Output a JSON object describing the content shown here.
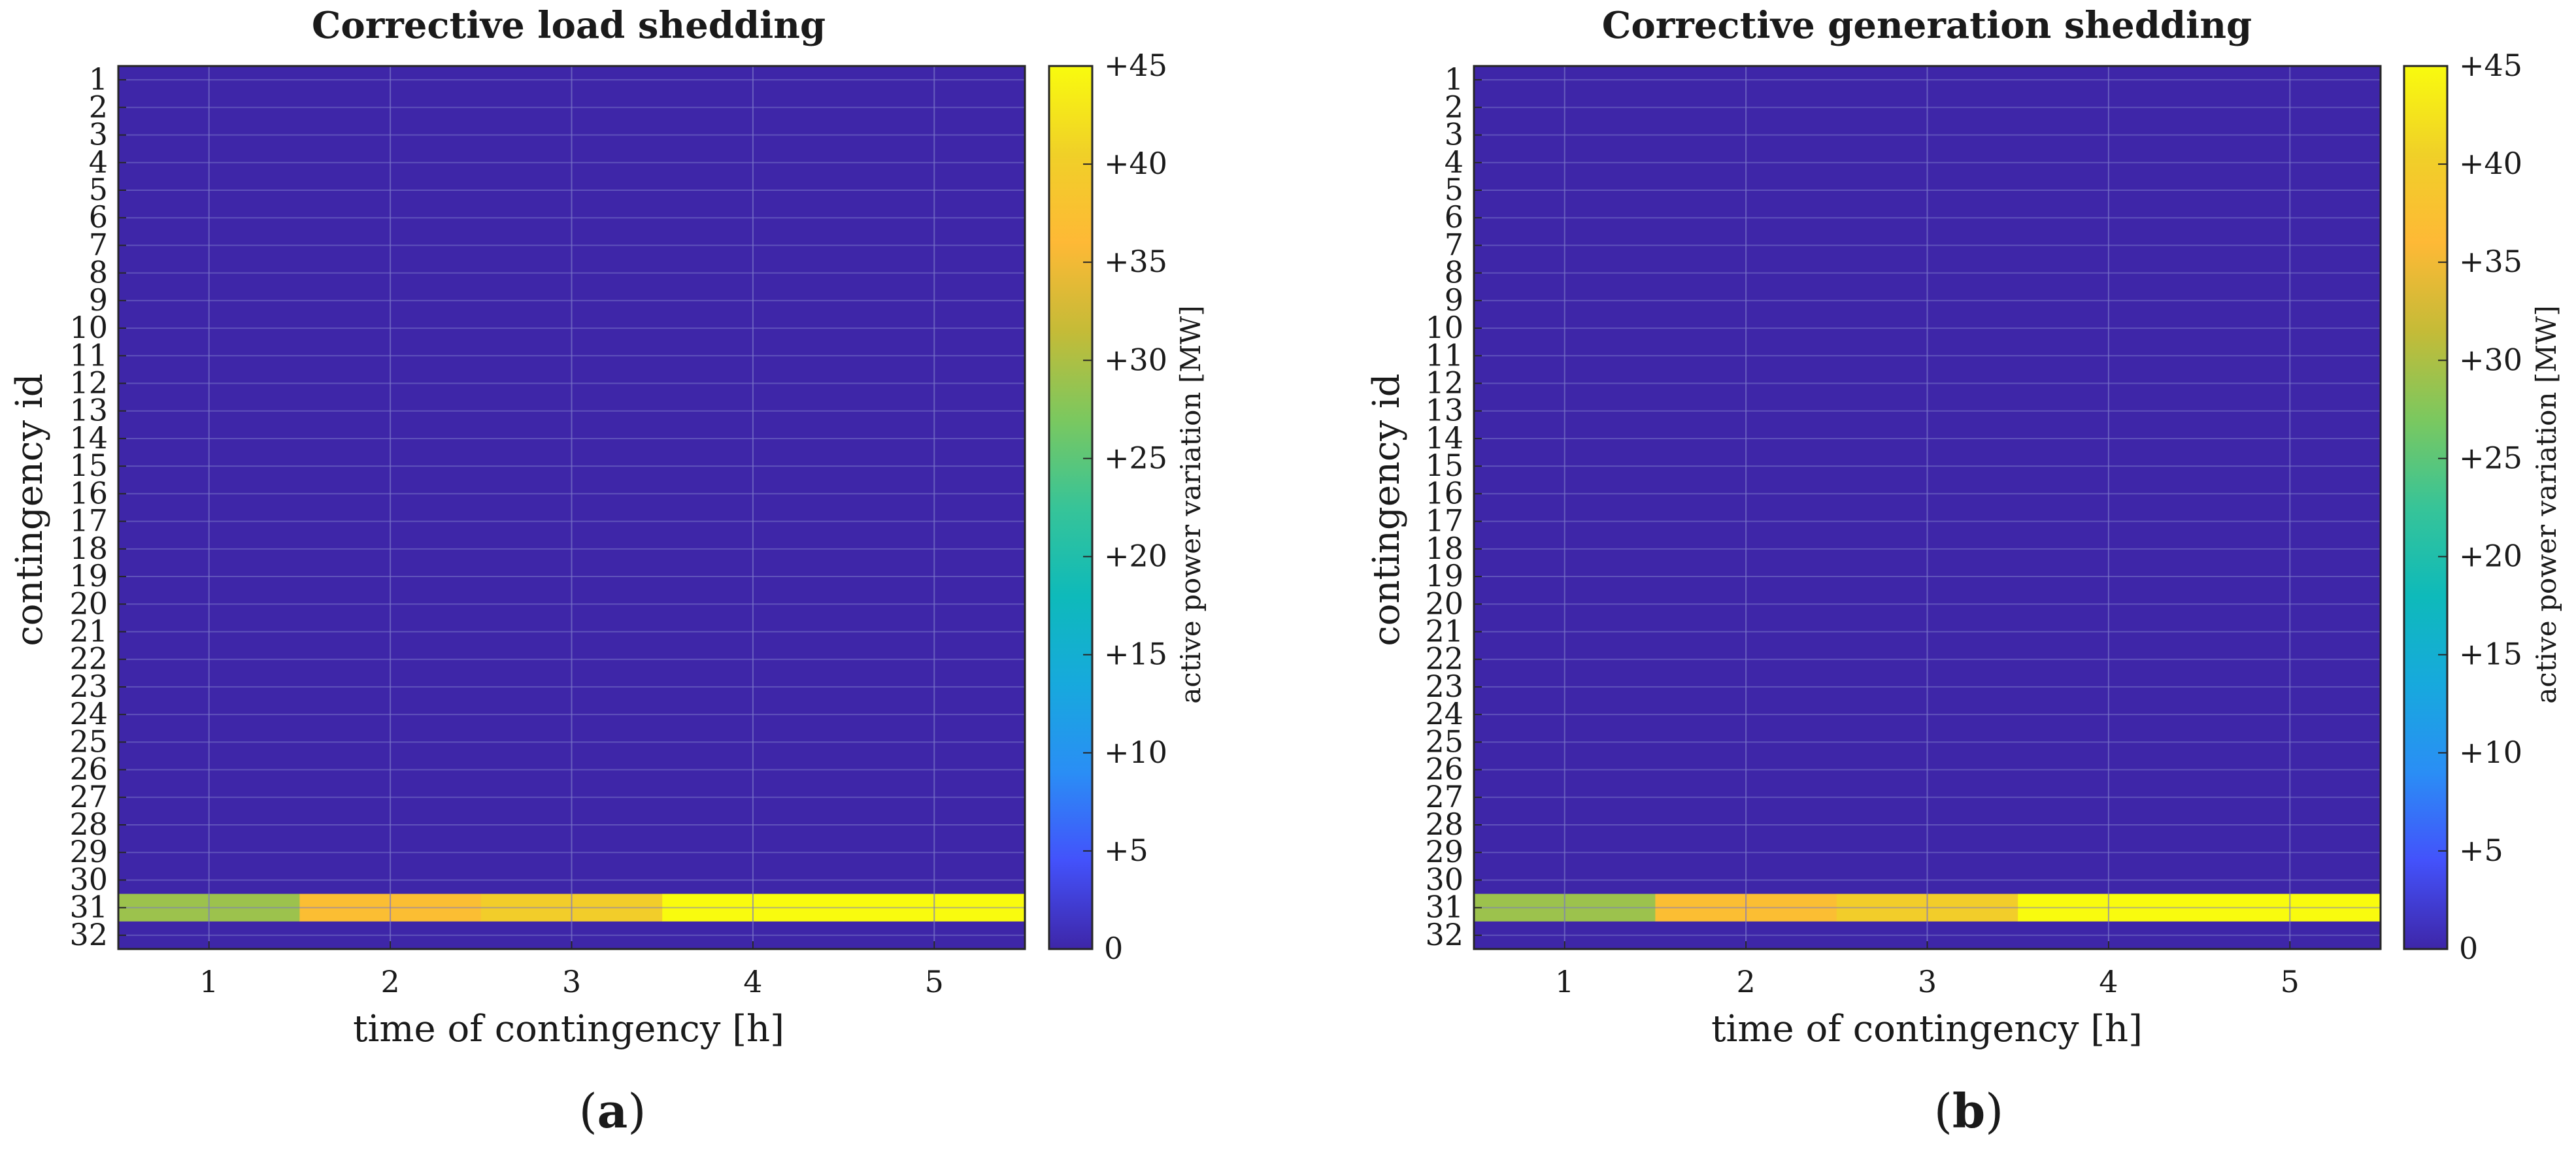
{
  "colors": {
    "background": "#3a33a8",
    "grid": "#7a76c8",
    "colormap": [
      "#3e26a8",
      "#4352fb",
      "#2a8ef5",
      "#17a9dd",
      "#0ebaba",
      "#37c498",
      "#7bc85f",
      "#c5bb37",
      "#feb936",
      "#f0d028",
      "#f9fb0e"
    ]
  },
  "chart_data": [
    {
      "type": "heatmap",
      "id": "a",
      "panel_letter": "a",
      "title": "Corrective load shedding",
      "xlabel": "time of contingency [h]",
      "ylabel": "contingency id",
      "x": [
        1,
        2,
        3,
        4,
        5
      ],
      "y": [
        1,
        2,
        3,
        4,
        5,
        6,
        7,
        8,
        9,
        10,
        11,
        12,
        13,
        14,
        15,
        16,
        17,
        18,
        19,
        20,
        21,
        22,
        23,
        24,
        25,
        26,
        27,
        28,
        29,
        30,
        31,
        32
      ],
      "xlim": [
        0.5,
        5.5
      ],
      "ylim": [
        0.5,
        32.5
      ],
      "grid": true,
      "nonzero_rows": [
        {
          "contingency": 31,
          "values": [
            29,
            37,
            40,
            45,
            45
          ]
        }
      ],
      "default_value": 0,
      "colorbar": {
        "label": "active power variation [MW]",
        "range": [
          0,
          45
        ],
        "ticks": [
          0,
          5,
          10,
          15,
          20,
          25,
          30,
          35,
          40,
          45
        ],
        "tick_labels": [
          "0",
          "+5",
          "+10",
          "+15",
          "+20",
          "+25",
          "+30",
          "+35",
          "+40",
          "+45"
        ]
      }
    },
    {
      "type": "heatmap",
      "id": "b",
      "panel_letter": "b",
      "title": "Corrective generation shedding",
      "xlabel": "time of contingency [h]",
      "ylabel": "contingency id",
      "x": [
        1,
        2,
        3,
        4,
        5
      ],
      "y": [
        1,
        2,
        3,
        4,
        5,
        6,
        7,
        8,
        9,
        10,
        11,
        12,
        13,
        14,
        15,
        16,
        17,
        18,
        19,
        20,
        21,
        22,
        23,
        24,
        25,
        26,
        27,
        28,
        29,
        30,
        31,
        32
      ],
      "xlim": [
        0.5,
        5.5
      ],
      "ylim": [
        0.5,
        32.5
      ],
      "grid": true,
      "nonzero_rows": [
        {
          "contingency": 31,
          "values": [
            29,
            37,
            40,
            45,
            45
          ]
        }
      ],
      "default_value": 0,
      "colorbar": {
        "label": "active power variation [MW]",
        "range": [
          0,
          45
        ],
        "ticks": [
          0,
          5,
          10,
          15,
          20,
          25,
          30,
          35,
          40,
          45
        ],
        "tick_labels": [
          "0",
          "+5",
          "+10",
          "+15",
          "+20",
          "+25",
          "+30",
          "+35",
          "+40",
          "+45"
        ]
      }
    }
  ]
}
